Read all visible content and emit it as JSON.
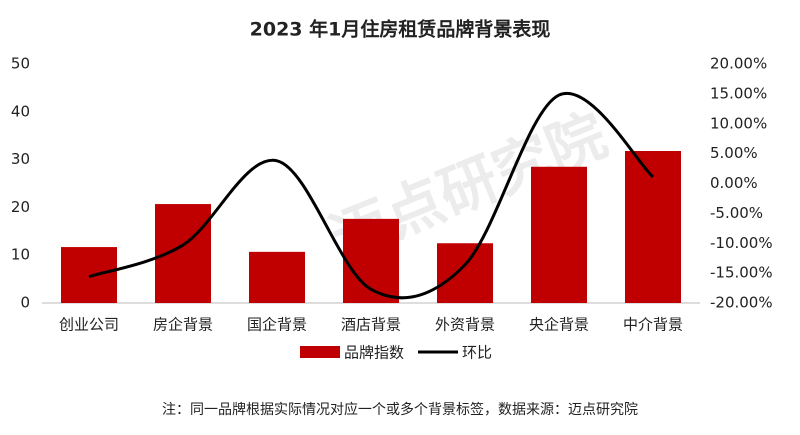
{
  "chart_data": {
    "type": "bar-line",
    "title": "2023 年1月住房租赁品牌背景表现",
    "categories": [
      "创业公司",
      "房企背景",
      "国企背景",
      "酒店背景",
      "外资背景",
      "央企背景",
      "中介背景"
    ],
    "series": [
      {
        "name": "品牌指数",
        "type": "bar",
        "color": "#c00000",
        "values": [
          11.7,
          20.7,
          10.7,
          17.6,
          12.5,
          28.5,
          31.8
        ]
      },
      {
        "name": "环比",
        "type": "line",
        "axis": "y2",
        "color": "#000000",
        "values": [
          -15.6,
          -10.3,
          3.8,
          -17.7,
          -13.6,
          14.8,
          1.1
        ]
      }
    ],
    "ylim": [
      0,
      50
    ],
    "yticks": [
      0,
      10,
      20,
      30,
      40,
      50
    ],
    "y2lim": [
      -20,
      20
    ],
    "y2ticks": [
      {
        "value": -20,
        "label": "-20.00%"
      },
      {
        "value": -15,
        "label": "-15.00%"
      },
      {
        "value": -10,
        "label": "-10.00%"
      },
      {
        "value": -5,
        "label": "-5.00%"
      },
      {
        "value": 0,
        "label": "0.00%"
      },
      {
        "value": 5,
        "label": "5.00%"
      },
      {
        "value": 10,
        "label": "10.00%"
      },
      {
        "value": 15,
        "label": "15.00%"
      },
      {
        "value": 20,
        "label": "20.00%"
      }
    ],
    "legend": "bottom",
    "note": "注：同一品牌根据实际情况对应一个或多个背景标签，数据来源：迈点研究院",
    "watermark": "迈点研究院"
  }
}
